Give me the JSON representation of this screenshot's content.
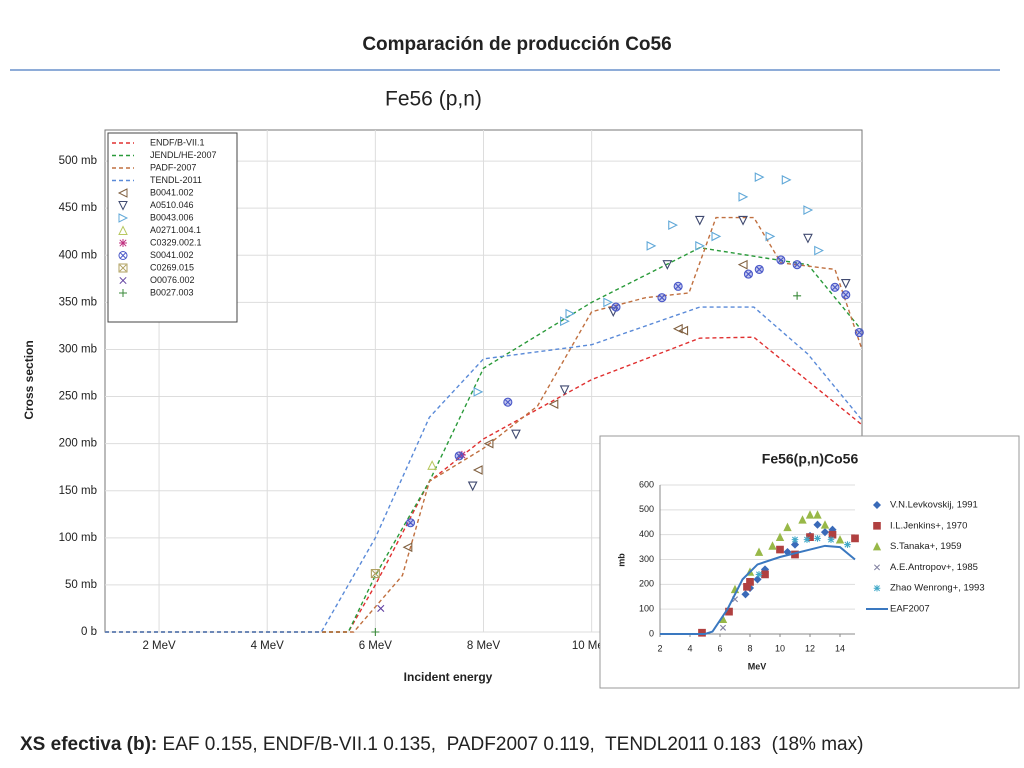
{
  "title": "Comparación de producción Co56",
  "footer": {
    "label": "XS efectiva (b):",
    "text": " EAF 0.155, ENDF/B-VII.1 0.135,  PADF2007 0.119,  TENDL2011 0.183  (18% max)"
  },
  "chart_data": [
    {
      "type": "line",
      "title": "Fe56 (p,n)",
      "x_label": "Incident energy",
      "y_label": "Cross section",
      "xlim": [
        1,
        15
      ],
      "ylim": [
        0,
        533
      ],
      "grid": true,
      "legend": "upper left",
      "xticks": [
        {
          "value": 2,
          "label": "2 MeV"
        },
        {
          "value": 4,
          "label": "4 MeV"
        },
        {
          "value": 6,
          "label": "6 MeV"
        },
        {
          "value": 8,
          "label": "8 MeV"
        },
        {
          "value": 10,
          "label": "10 MeV"
        }
      ],
      "yticks": [
        {
          "value": 0,
          "label": "0 b"
        },
        {
          "value": 50,
          "label": "50 mb"
        },
        {
          "value": 100,
          "label": "100 mb"
        },
        {
          "value": 150,
          "label": "150 mb"
        },
        {
          "value": 200,
          "label": "200 mb"
        },
        {
          "value": 250,
          "label": "250 mb"
        },
        {
          "value": 300,
          "label": "300 mb"
        },
        {
          "value": 350,
          "label": "350 mb"
        },
        {
          "value": 400,
          "label": "400 mb"
        },
        {
          "value": 450,
          "label": "450 mb"
        },
        {
          "value": 500,
          "label": "500 mb"
        }
      ],
      "series": [
        {
          "name": "ENDF/B-VII.1",
          "color": "#e03030",
          "mode": "dashed",
          "x": [
            1,
            5.5,
            6,
            7,
            8,
            10,
            12,
            13,
            15
          ],
          "values": [
            0,
            0,
            50,
            160,
            205,
            268,
            312,
            313,
            220
          ]
        },
        {
          "name": "JENDL/HE-2007",
          "color": "#2a9a3a",
          "mode": "dashed",
          "x": [
            1,
            5.5,
            6,
            7,
            8,
            10,
            12,
            14,
            15
          ],
          "values": [
            0,
            0,
            60,
            160,
            280,
            350,
            408,
            390,
            320
          ]
        },
        {
          "name": "PADF-2007",
          "color": "#c07040",
          "mode": "dashed",
          "x": [
            1,
            5.6,
            6.5,
            7,
            8,
            9,
            10,
            11,
            11.8,
            12.3,
            13,
            13.5,
            14.5,
            15
          ],
          "values": [
            0,
            0,
            60,
            160,
            195,
            240,
            340,
            355,
            360,
            440,
            440,
            392,
            385,
            300
          ]
        },
        {
          "name": "TENDL-2011",
          "color": "#5a8ad8",
          "mode": "dashed",
          "x": [
            1,
            5,
            6,
            7,
            8,
            10,
            12,
            13,
            14,
            15
          ],
          "values": [
            0,
            0,
            100,
            228,
            290,
            305,
            345,
            345,
            295,
            225
          ]
        },
        {
          "name": "B0041.002",
          "color": "#806040",
          "mode": "tri-left",
          "x": [
            6.6,
            7.9,
            8.1,
            9.3,
            11.6,
            11.7,
            12.8
          ],
          "values": [
            90,
            172,
            200,
            242,
            322,
            320,
            390
          ]
        },
        {
          "name": "A0510.046",
          "color": "#404a70",
          "mode": "tri-down",
          "x": [
            7.8,
            8.6,
            9.5,
            10.4,
            11.4,
            12,
            12.8,
            14,
            14.7
          ],
          "values": [
            155,
            210,
            257,
            340,
            390,
            437,
            437,
            418,
            370
          ]
        },
        {
          "name": "B0043.006",
          "color": "#60a8d8",
          "mode": "tri-right",
          "x": [
            7.9,
            9.5,
            9.6,
            10.3,
            11.1,
            11.5,
            12,
            12.3,
            12.8,
            13.1,
            13.3,
            13.6,
            14,
            14.2
          ],
          "values": [
            255,
            330,
            338,
            350,
            410,
            432,
            410,
            420,
            462,
            483,
            420,
            480,
            448,
            405
          ]
        },
        {
          "name": "A0271.004.1",
          "color": "#b8c860",
          "mode": "tri-up",
          "x": [
            7.05
          ],
          "values": [
            177
          ]
        },
        {
          "name": "C0329.002.1",
          "color": "#c03080",
          "mode": "asterisk",
          "x": [
            7.6
          ],
          "values": [
            188
          ]
        },
        {
          "name": "S0041.002",
          "color": "#4a58c8",
          "mode": "circle-x",
          "x": [
            6.65,
            7.55,
            8.45,
            10.45,
            11.3,
            11.6,
            12.9,
            13.1,
            13.5,
            13.8,
            14.5,
            14.7,
            14.95
          ],
          "values": [
            116,
            187,
            244,
            345,
            355,
            367,
            380,
            385,
            395,
            390,
            366,
            358,
            318
          ]
        },
        {
          "name": "C0269.015",
          "color": "#b0a060",
          "mode": "square-x",
          "x": [
            6
          ],
          "values": [
            62
          ]
        },
        {
          "name": "O0076.002",
          "color": "#6040a0",
          "mode": "x",
          "x": [
            6.1
          ],
          "values": [
            25
          ]
        },
        {
          "name": "B0027.003",
          "color": "#3a8a3a",
          "mode": "plus",
          "x": [
            6,
            13.8
          ],
          "values": [
            0,
            357
          ]
        }
      ]
    },
    {
      "type": "line",
      "title": "Fe56(p,n)Co56",
      "x_label": "MeV",
      "y_label": "mb",
      "xlim": [
        2,
        15
      ],
      "ylim": [
        0,
        600
      ],
      "grid": true,
      "legend": "right",
      "xticks": [
        2,
        4,
        6,
        8,
        10,
        12,
        14
      ],
      "yticks": [
        0,
        100,
        200,
        300,
        400,
        500,
        600
      ],
      "series": [
        {
          "name": "V.N.Levkovskij, 1991",
          "color": "#3a6ab8",
          "mode": "diamond-filled",
          "x": [
            7.7,
            8,
            8.5,
            9,
            10.5,
            11,
            12,
            12.5,
            13,
            13.5
          ],
          "values": [
            160,
            185,
            220,
            260,
            330,
            360,
            395,
            440,
            410,
            420
          ]
        },
        {
          "name": "I.L.Jenkins+, 1970",
          "color": "#b04040",
          "mode": "square-filled",
          "x": [
            4.8,
            6.6,
            7.8,
            8,
            9,
            10,
            11,
            12,
            13.5,
            15
          ],
          "values": [
            5,
            90,
            190,
            210,
            240,
            340,
            320,
            390,
            400,
            385
          ]
        },
        {
          "name": "S.Tanaka+, 1959",
          "color": "#98b848",
          "mode": "triangle-filled",
          "x": [
            6.2,
            7,
            8,
            8.6,
            9.5,
            10,
            10.5,
            11.5,
            12,
            12.5,
            13,
            14
          ],
          "values": [
            60,
            180,
            250,
            330,
            355,
            390,
            430,
            460,
            480,
            480,
            440,
            380
          ]
        },
        {
          "name": "A.E.Antropov+, 1985",
          "color": "#8080a0",
          "mode": "x",
          "x": [
            6.2,
            7
          ],
          "values": [
            25,
            140
          ]
        },
        {
          "name": "Zhao Wenrong+, 1993",
          "color": "#40a8c8",
          "mode": "asterisk",
          "x": [
            8.6,
            11,
            11.8,
            12.5,
            13.4,
            14.5
          ],
          "values": [
            240,
            380,
            380,
            385,
            380,
            360
          ]
        },
        {
          "name": "EAF2007",
          "color": "#3a78c0",
          "mode": "solid",
          "x": [
            2,
            5,
            5.5,
            6.5,
            7.5,
            8.5,
            10,
            12,
            13,
            14,
            15
          ],
          "values": [
            0,
            0,
            10,
            100,
            220,
            280,
            310,
            340,
            355,
            350,
            300
          ]
        }
      ]
    }
  ]
}
